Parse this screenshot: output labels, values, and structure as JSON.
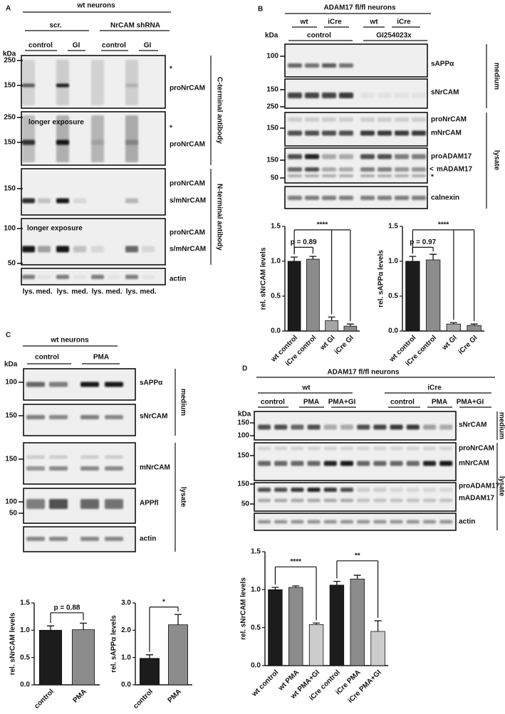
{
  "panel_a": {
    "letter": "A",
    "title": "wt neurons",
    "groups": [
      "scr.",
      "NrCAM shRNA"
    ],
    "conditions": [
      "control",
      "GI",
      "control",
      "GI"
    ],
    "kda": "kDa",
    "markers": [
      250,
      150,
      250,
      150,
      150,
      100,
      50
    ],
    "labels": [
      "*",
      "proNrCAM",
      "*",
      "proNrCAM",
      "proNrCAM",
      "s/mNrCAM",
      "proNrCAM",
      "s/mNrCAM",
      "actin"
    ],
    "notes": [
      "longer exposure",
      "longer exposure"
    ],
    "antibodies": [
      "C-terminal antibody",
      "N-terminal antibody"
    ],
    "lanes": [
      "lys.",
      "med.",
      "lys.",
      "med.",
      "lys.",
      "med.",
      "lys.",
      "med."
    ]
  },
  "panel_b": {
    "letter": "B",
    "title": "ADAM17 fl/fl neurons",
    "genotypes": [
      "wt",
      "iCre",
      "wt",
      "iCre"
    ],
    "treatments": [
      "control",
      "GI254023x"
    ],
    "kda": "kDa",
    "markers": [
      100,
      150,
      250,
      150,
      150,
      50
    ],
    "labels": [
      "sAPPα",
      "sNrCAM",
      "proNrCAM",
      "mNrCAM",
      "proADAM17",
      "<",
      "mADAM17",
      "*",
      "calnexin"
    ],
    "fractions": [
      "medium",
      "lysate"
    ]
  },
  "panel_c": {
    "letter": "C",
    "title": "wt neurons",
    "conditions": [
      "control",
      "PMA"
    ],
    "kda": "kDa",
    "markers": [
      100,
      150,
      150,
      100,
      50
    ],
    "labels": [
      "sAPPα",
      "sNrCAM",
      "mNrCAM",
      "APPfl",
      "actin"
    ],
    "fractions": [
      "medium",
      "lysate"
    ]
  },
  "panel_d": {
    "letter": "D",
    "title": "ADAM17 fl/fl neurons",
    "genotypes": [
      "wt",
      "iCre"
    ],
    "conditions": [
      "control",
      "PMA",
      "PMA+GI",
      "control",
      "PMA",
      "PMA+GI"
    ],
    "kda": "kDa",
    "markers": [
      150,
      100,
      150,
      150,
      50
    ],
    "labels": [
      "sNrCAM",
      "proNrCAM",
      "mNrCAM",
      "proADAM17",
      "mADAM17",
      "actin"
    ],
    "fractions": [
      "medium",
      "lysate"
    ]
  },
  "chart_data": [
    {
      "type": "bar",
      "ylabel": "rel. sNrCAM levels",
      "categories": [
        "wt control",
        "iCre control",
        "wt GI",
        "iCre GI"
      ],
      "values": [
        1.0,
        1.03,
        0.15,
        0.07
      ],
      "errors": [
        0.06,
        0.04,
        0.05,
        0.03
      ],
      "colors": [
        "#1c1c1c",
        "#8c8c8c",
        "#a5a5a5",
        "#8c8c8c"
      ],
      "ylim": [
        0,
        1.5
      ],
      "yticks": [
        {
          "value": 0,
          "label": "0.0"
        },
        0.5,
        {
          "value": 1,
          "label": "1.0"
        },
        1.5
      ],
      "annotations": [
        "p = 0.89",
        "****"
      ]
    },
    {
      "type": "bar",
      "ylabel": "rel. sAPPα levels",
      "categories": [
        "wt control",
        "iCre control",
        "wt GI",
        "iCre GI"
      ],
      "values": [
        1.0,
        1.02,
        0.1,
        0.08
      ],
      "errors": [
        0.07,
        0.08,
        0.02,
        0.02
      ],
      "colors": [
        "#1c1c1c",
        "#8c8c8c",
        "#a5a5a5",
        "#8c8c8c"
      ],
      "ylim": [
        0,
        1.5
      ],
      "yticks": [
        {
          "value": 0,
          "label": "0.0"
        },
        0.5,
        {
          "value": 1,
          "label": "1.0"
        },
        1.5
      ],
      "annotations": [
        "p = 0.97",
        "****"
      ]
    },
    {
      "type": "bar",
      "ylabel": "rel. sNrCAM levels",
      "categories": [
        "control",
        "PMA"
      ],
      "values": [
        1.0,
        1.01
      ],
      "errors": [
        0.08,
        0.12
      ],
      "colors": [
        "#1c1c1c",
        "#8c8c8c"
      ],
      "ylim": [
        0,
        1.5
      ],
      "yticks": [
        {
          "value": 0,
          "label": "0.0"
        },
        0.5,
        {
          "value": 1,
          "label": "1.0"
        },
        1.5
      ],
      "annotations": [
        "p = 0.88"
      ]
    },
    {
      "type": "bar",
      "ylabel": "rel. sAPPα levels",
      "categories": [
        "control",
        "PMA"
      ],
      "values": [
        0.97,
        2.2
      ],
      "errors": [
        0.13,
        0.38
      ],
      "colors": [
        "#1c1c1c",
        "#8c8c8c"
      ],
      "ylim": [
        0,
        3
      ],
      "yticks": [
        {
          "value": 0,
          "label": "0.0"
        },
        {
          "value": 1,
          "label": "1.0"
        },
        {
          "value": 2,
          "label": "2.0"
        },
        {
          "value": 3,
          "label": "3.0"
        }
      ],
      "annotations": [
        "*"
      ]
    },
    {
      "type": "bar",
      "ylabel": "rel. sNrCAM levels",
      "categories": [
        "wt control",
        "wt PMA",
        "wt PMA+GI",
        "iCre control",
        "iCre PMA",
        "iCre PMA+GI"
      ],
      "values": [
        1.0,
        1.03,
        0.54,
        1.06,
        1.14,
        0.45
      ],
      "errors": [
        0.03,
        0.02,
        0.02,
        0.05,
        0.05,
        0.14
      ],
      "colors": [
        "#1c1c1c",
        "#8c8c8c",
        "#cccccc",
        "#1c1c1c",
        "#8c8c8c",
        "#cccccc"
      ],
      "ylim": [
        0,
        1.5
      ],
      "yticks": [
        {
          "value": 0,
          "label": "0.0"
        },
        0.5,
        {
          "value": 1,
          "label": "1.0"
        },
        1.5
      ],
      "annotations": [
        "****",
        "**"
      ]
    }
  ]
}
